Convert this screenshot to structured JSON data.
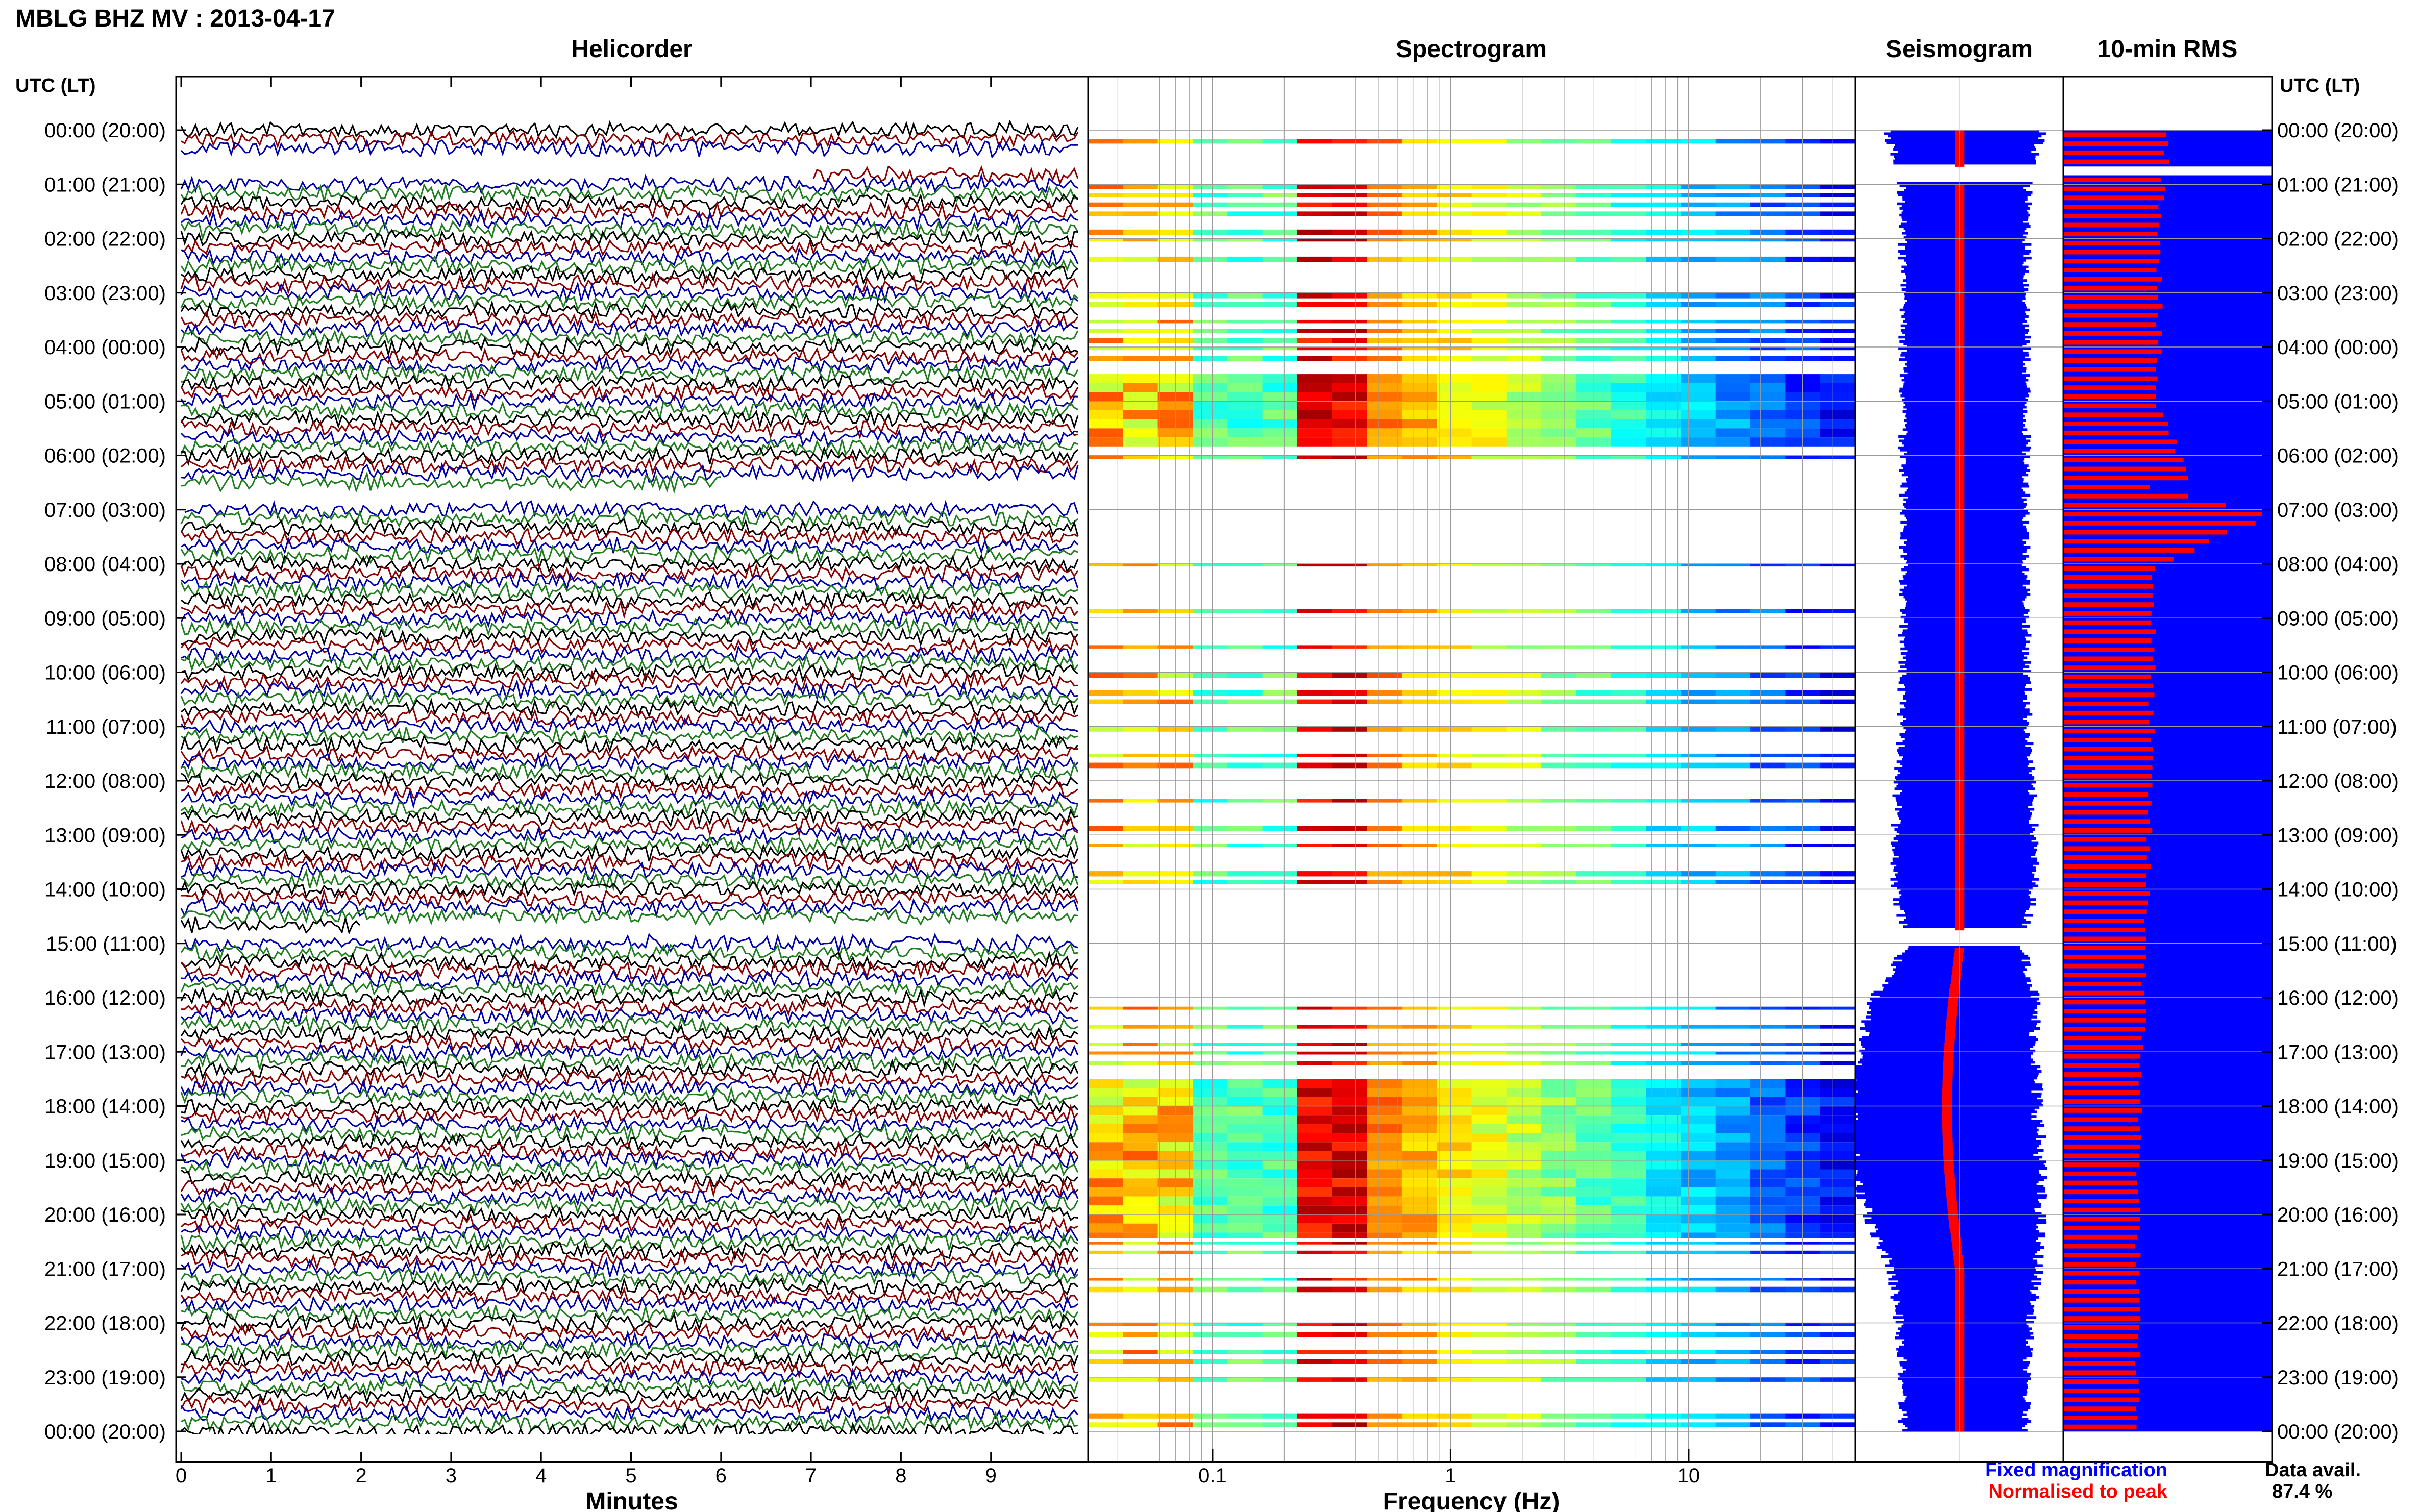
{
  "header": {
    "title": "MBLG BHZ MV : 2013-04-17"
  },
  "panels": {
    "helicorder": "Helicorder",
    "spectrogram": "Spectrogram",
    "seismogram": "Seismogram",
    "rms": "10-min RMS"
  },
  "time_axis": {
    "label": "UTC (LT)",
    "ticks": [
      "00:00 (20:00)",
      "01:00 (21:00)",
      "02:00 (22:00)",
      "03:00 (23:00)",
      "04:00 (00:00)",
      "05:00 (01:00)",
      "06:00 (02:00)",
      "07:00 (03:00)",
      "08:00 (04:00)",
      "09:00 (05:00)",
      "10:00 (06:00)",
      "11:00 (07:00)",
      "12:00 (08:00)",
      "13:00 (09:00)",
      "14:00 (10:00)",
      "15:00 (11:00)",
      "16:00 (12:00)",
      "17:00 (13:00)",
      "18:00 (14:00)",
      "19:00 (15:00)",
      "20:00 (16:00)",
      "21:00 (17:00)",
      "22:00 (18:00)",
      "23:00 (19:00)",
      "00:00 (20:00)"
    ]
  },
  "minutes_axis": {
    "label": "Minutes",
    "ticks": [
      "0",
      "1",
      "2",
      "3",
      "4",
      "5",
      "6",
      "7",
      "8",
      "9"
    ]
  },
  "frequency_axis": {
    "label": "Frequency (Hz)",
    "ticks": [
      "0.1",
      "1",
      "10"
    ],
    "scale": "log"
  },
  "legend": {
    "fixed": "Fixed magnification",
    "normalised": "Normalised to peak",
    "fixed_color": "#0000ff",
    "normalised_color": "#ff0000"
  },
  "availability": {
    "label": "Data avail.",
    "value": "87.4 %"
  },
  "colors": {
    "trace_cycle": [
      "#000000",
      "#8b0000",
      "#0000aa",
      "#1e7e1e"
    ],
    "fixed": "#0000ff",
    "normalised": "#ff0000"
  },
  "chart_data": [
    {
      "type": "line",
      "title": "Helicorder",
      "xlabel": "Minutes",
      "xlim": [
        0,
        10
      ],
      "ylim_hours_utc": [
        0,
        24
      ],
      "traces_per_hour": 6,
      "gaps_hours_utc": [
        [
          0.5,
          0.95
        ],
        [
          6.6,
          7.0
        ],
        [
          14.7,
          15.0
        ]
      ]
    },
    {
      "type": "heatmap",
      "title": "Spectrogram",
      "xlabel": "Frequency (Hz)",
      "xscale": "log",
      "xlim": [
        0.03,
        50
      ],
      "ylim_hours_utc": [
        0,
        24
      ],
      "colormap": "jet",
      "gaps_hours_utc": [
        [
          0.5,
          0.95
        ],
        [
          6.2,
          7.3
        ],
        [
          14.7,
          15.2
        ]
      ]
    },
    {
      "type": "area",
      "title": "Seismogram",
      "series": [
        {
          "name": "Fixed magnification",
          "hours": [
            0,
            1,
            3,
            5,
            7,
            9,
            11,
            13,
            14,
            15,
            16,
            17,
            18,
            19,
            20,
            21,
            22,
            23,
            24
          ],
          "half_width": [
            1.0,
            0.82,
            0.8,
            0.8,
            0.8,
            0.8,
            0.82,
            0.9,
            0.9,
            0.75,
            1.05,
            1.15,
            1.22,
            1.22,
            1.12,
            0.95,
            0.85,
            0.8,
            0.8
          ]
        },
        {
          "name": "Normalised to peak",
          "hours": [
            0,
            6,
            12,
            18,
            24
          ],
          "half_width": [
            0.06,
            0.06,
            0.06,
            0.06,
            0.06
          ]
        }
      ],
      "gaps_hours_utc": [
        [
          0.6,
          0.95
        ],
        [
          14.7,
          15.0
        ]
      ]
    },
    {
      "type": "bar",
      "title": "10-min RMS",
      "orientation": "horizontal",
      "bars_per_hour": 6,
      "series": [
        {
          "name": "Fixed magnification",
          "value_range": [
            0,
            1
          ],
          "typical": 1.0
        },
        {
          "name": "Normalised to peak",
          "hours": [
            0,
            1,
            5,
            6.3,
            6.5,
            7,
            8,
            12,
            15,
            18,
            21,
            24
          ],
          "values": [
            0.52,
            0.48,
            0.45,
            0.62,
            0.42,
            1.0,
            0.44,
            0.42,
            0.4,
            0.37,
            0.36,
            0.36
          ]
        }
      ],
      "gaps_hours_utc": [
        [
          0.65,
          0.8
        ]
      ]
    }
  ]
}
